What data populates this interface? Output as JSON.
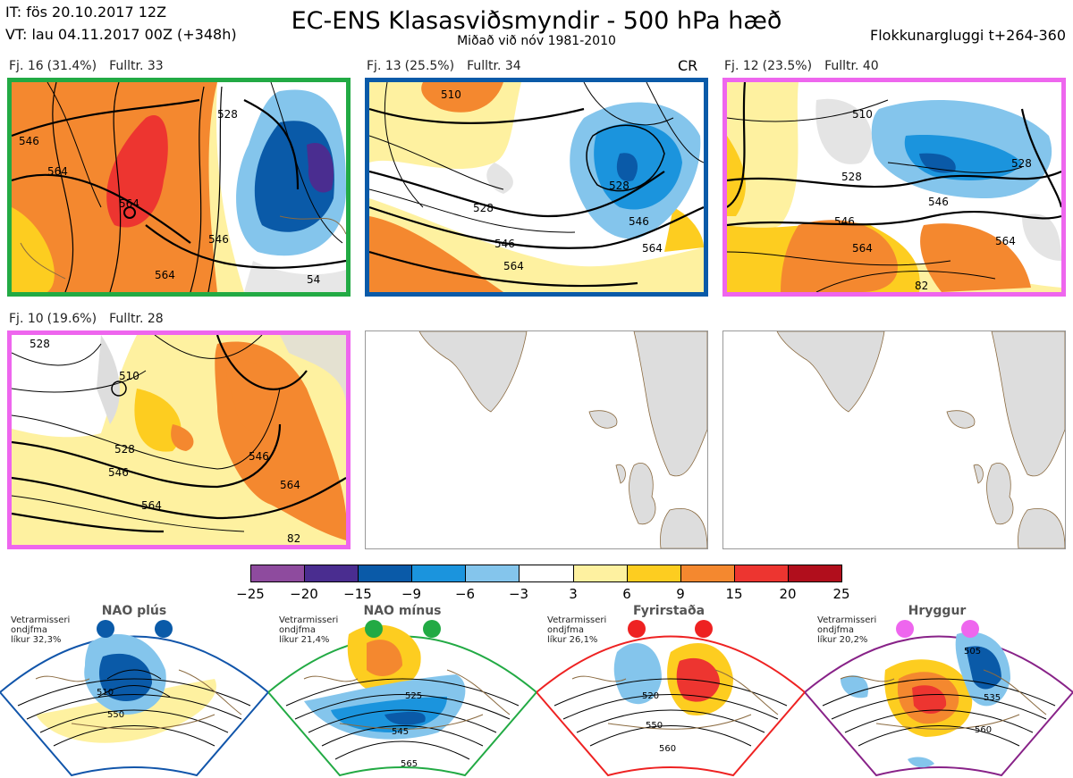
{
  "header": {
    "it_line": "IT: fös 20.10.2017 12Z",
    "vt_line": "VT: lau 04.11.2017 00Z  (+348h)",
    "title": "EC-ENS Klasasviðsmyndir - 500 hPa hæð",
    "subtitle": "Miðað við nóv 1981-2010",
    "window_label": "Flokkunargluggi t+264-360"
  },
  "panels": [
    {
      "label": "Fj. 16",
      "pct": "(31.4%)",
      "members": "Fulltr. 33",
      "border_color": "#22aa44",
      "contours": [
        "528",
        "546",
        "564",
        "564",
        "546",
        "564",
        "54"
      ]
    },
    {
      "label": "Fj. 13",
      "pct": "(25.5%)",
      "members": "Fulltr. 34",
      "border_color": "#0a5aa8",
      "badge": "CR",
      "contours": [
        "510",
        "528",
        "528",
        "546",
        "546",
        "564",
        "564"
      ]
    },
    {
      "label": "Fj. 12",
      "pct": "(23.5%)",
      "members": "Fulltr. 40",
      "border_color": "#ee66ee",
      "contours": [
        "510",
        "528",
        "528",
        "546",
        "546",
        "564",
        "564",
        "82"
      ]
    },
    {
      "label": "Fj. 10",
      "pct": "(19.6%)",
      "members": "Fulltr. 28",
      "border_color": "#ee66ee",
      "contours": [
        "528",
        "510",
        "528",
        "546",
        "546",
        "564",
        "564",
        "82"
      ]
    }
  ],
  "colorbar": {
    "labels": [
      "−25",
      "−20",
      "−15",
      "−9",
      "−6",
      "−3",
      "3",
      "6",
      "9",
      "15",
      "20",
      "25"
    ],
    "colors": [
      "#8e4b9e",
      "#4a2d90",
      "#0a5aa8",
      "#1b94dd",
      "#84c5ec",
      "#ffffff",
      "#fef1a0",
      "#fdcd20",
      "#f4882f",
      "#ed3530",
      "#b10e1c"
    ]
  },
  "regimes": [
    {
      "title": "NAO plús",
      "text": "Vetrarmisseri\nondjfma\nlíkur 32,3%",
      "dot_color": "#0a5aa8",
      "border_color": "#1155aa",
      "contours": [
        "510",
        "550"
      ]
    },
    {
      "title": "NAO mínus",
      "text": "Vetrarmisseri\nondjfma\nlíkur 21,4%",
      "dot_color": "#22aa44",
      "border_color": "#22aa44",
      "contours": [
        "525",
        "545",
        "565"
      ]
    },
    {
      "title": "Fyrirstaða",
      "text": "Vetrarmisseri\nondjfma\nlíkur 26,1%",
      "dot_color": "#ee2222",
      "border_color": "#ee2222",
      "contours": [
        "520",
        "550",
        "560"
      ]
    },
    {
      "title": "Hryggur",
      "text": "Vetrarmisseri\nondjfma\nlíkur 20,2%",
      "dot_color": "#ee66ee",
      "border_color": "#882288",
      "contours": [
        "505",
        "535",
        "560"
      ]
    }
  ]
}
